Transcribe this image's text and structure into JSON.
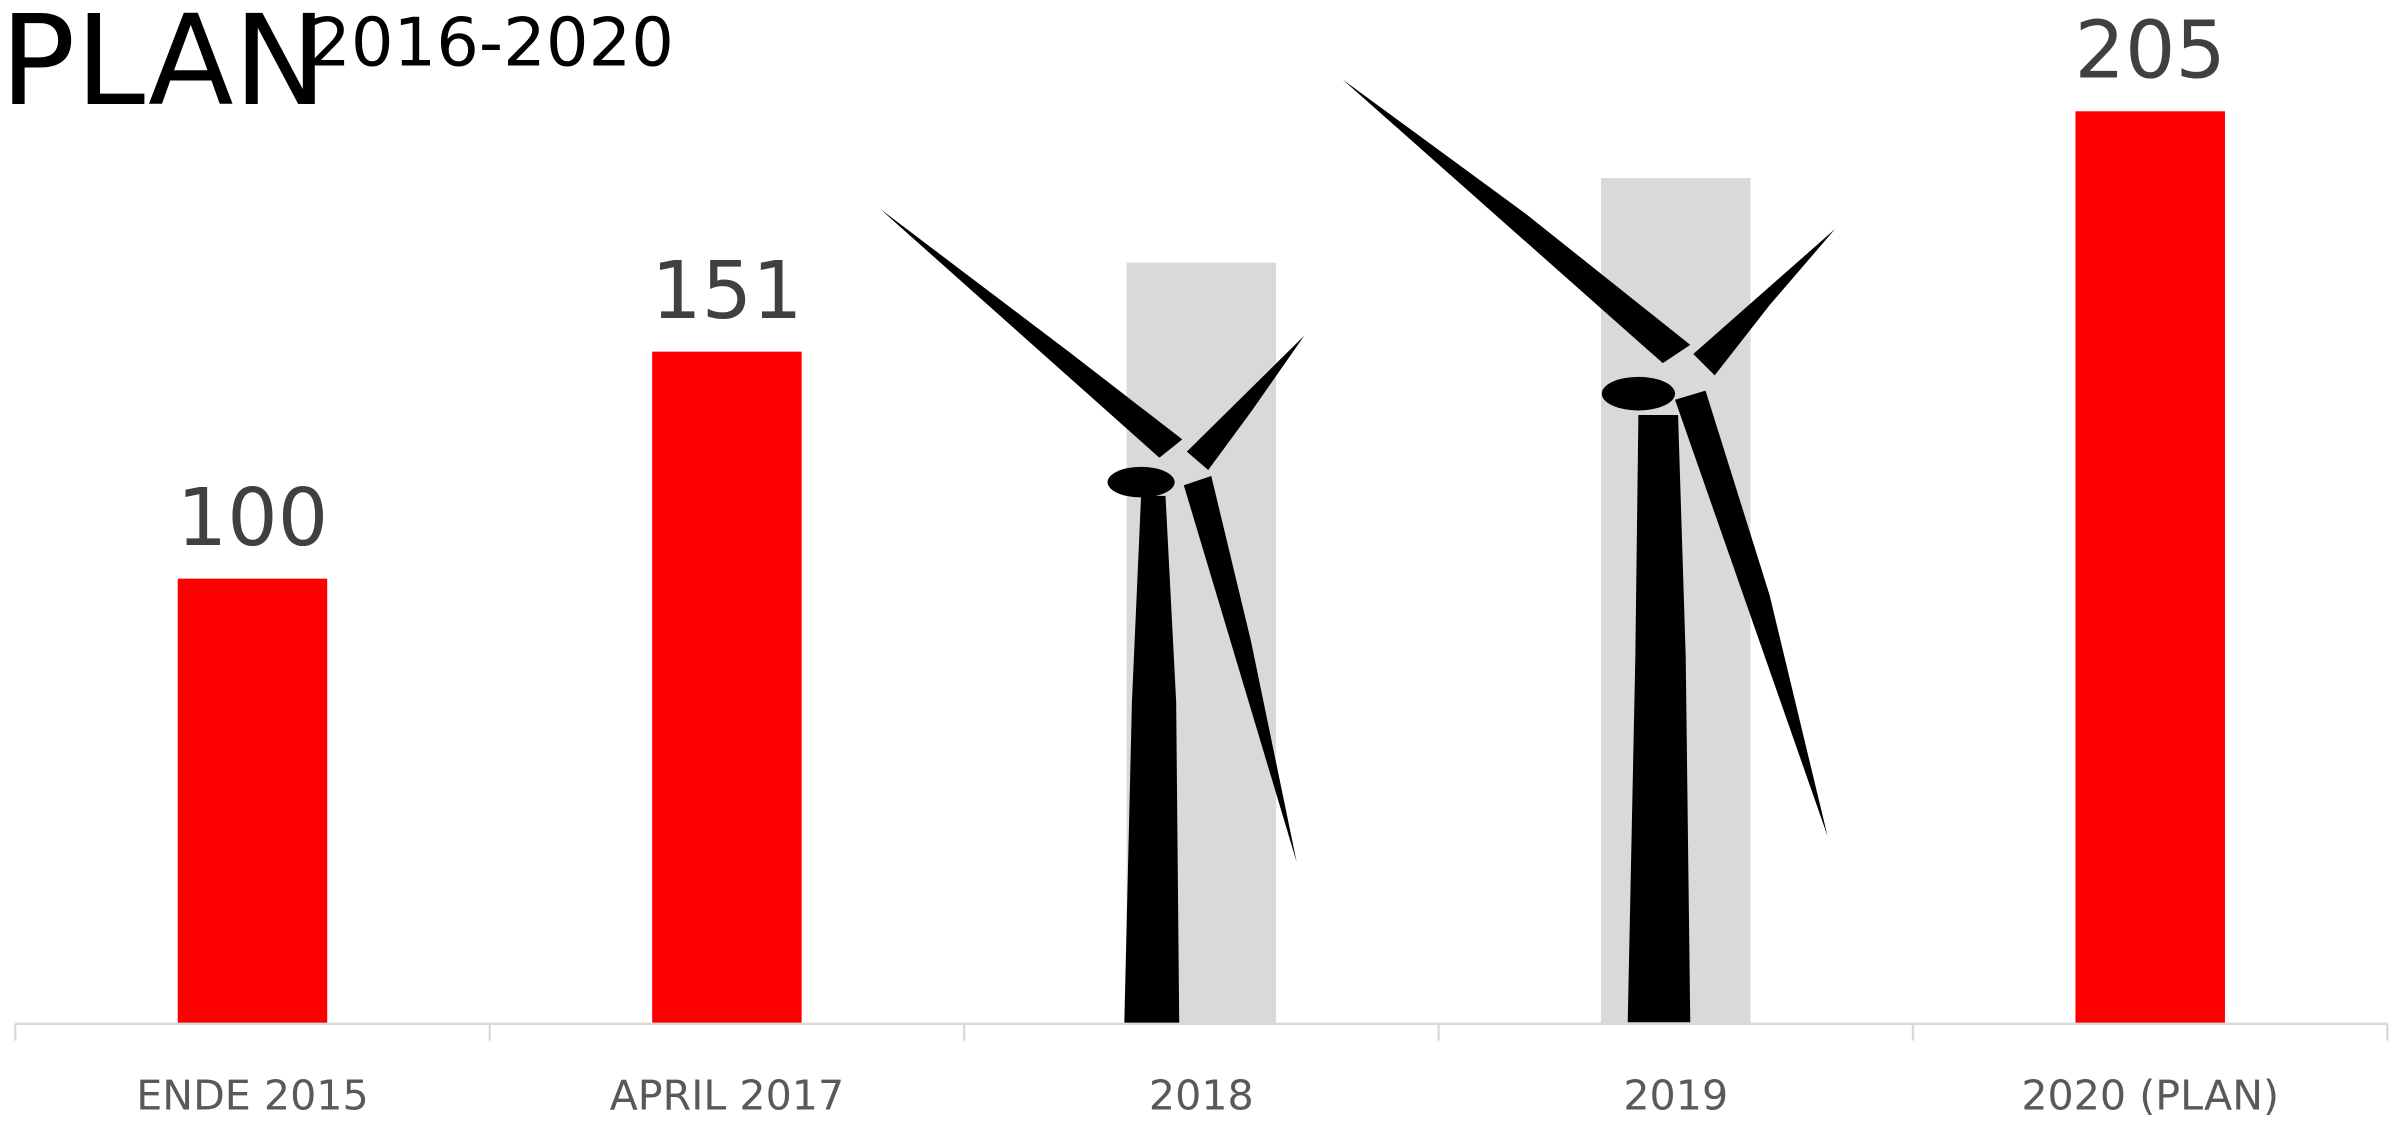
{
  "chart_data": {
    "type": "bar",
    "title": "PLAN",
    "subtitle": "2016-2020",
    "categories": [
      "ENDE 2015",
      "APRIL 2017",
      "2018",
      "2019",
      "2020 (PLAN)"
    ],
    "values": [
      100,
      151,
      171,
      190,
      205
    ],
    "value_labels": [
      "100",
      "151",
      null,
      null,
      "205"
    ],
    "colors": [
      "#ff0000",
      "#ff0000",
      "#d9d9d9",
      "#d9d9d9",
      "#ff0000"
    ],
    "ylim": [
      0,
      230
    ]
  }
}
